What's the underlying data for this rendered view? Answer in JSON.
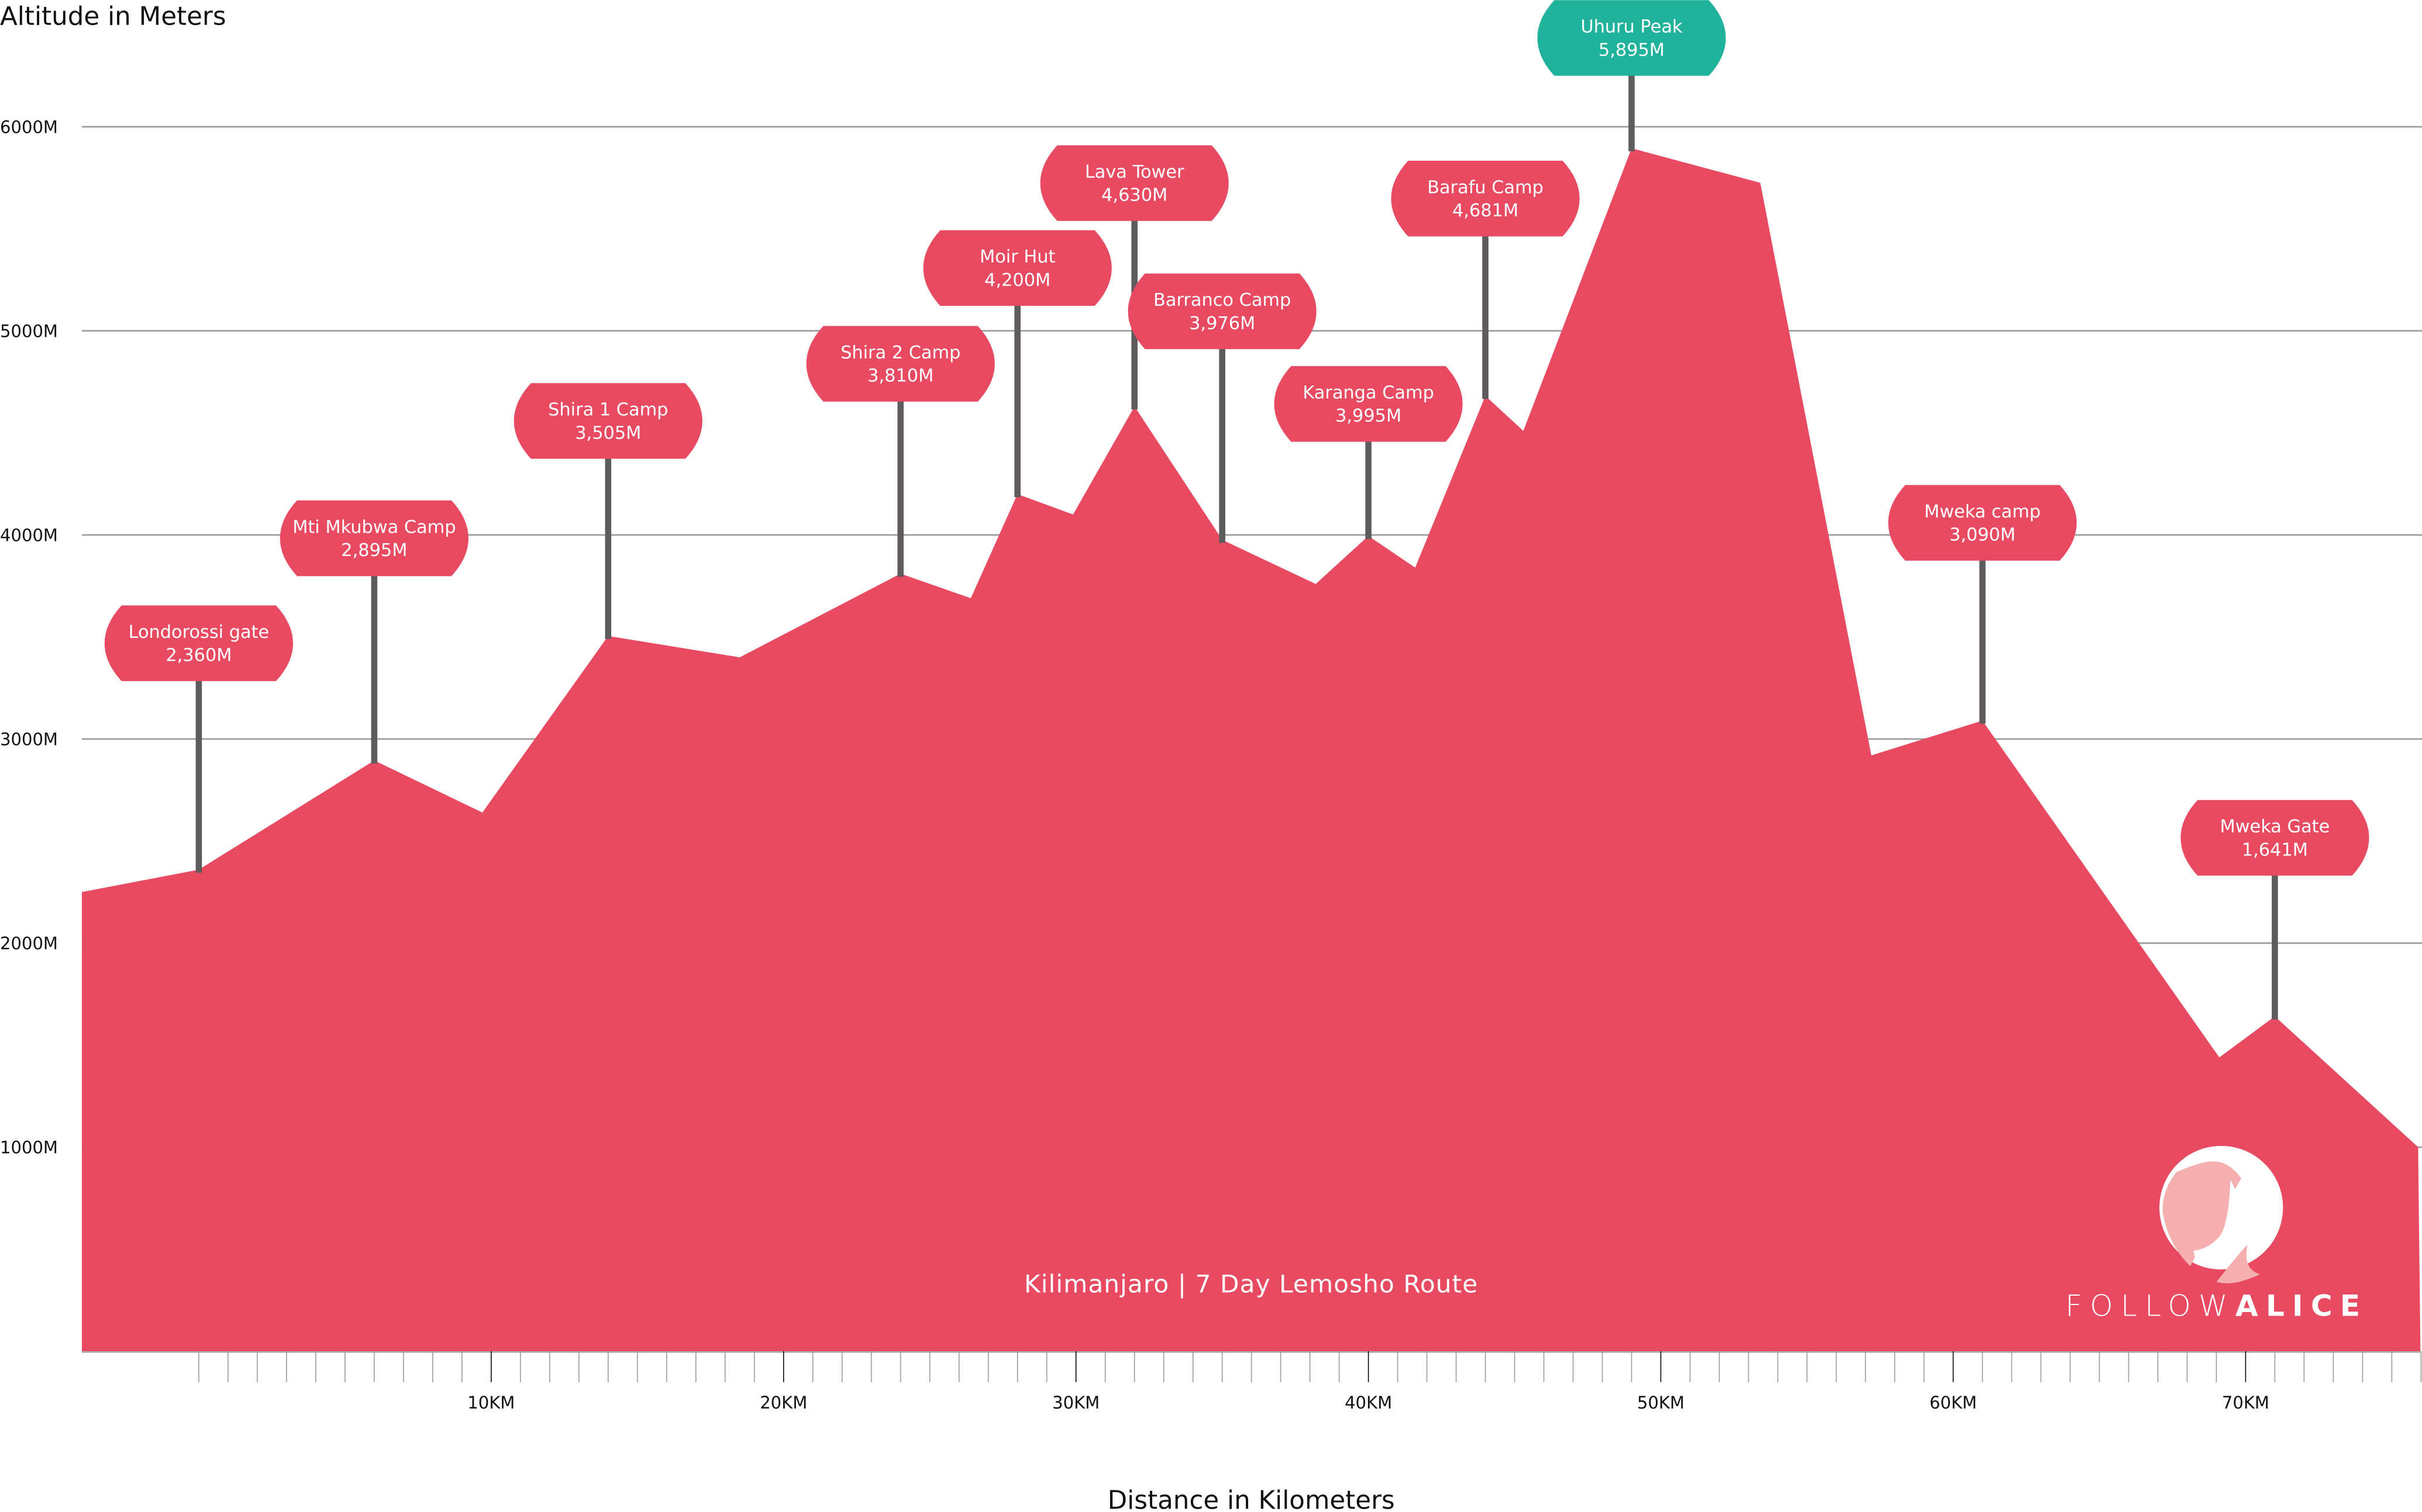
{
  "chart_data": {
    "type": "area",
    "title": "Kilimanjaro | 7 Day Lemosho Route",
    "xlabel": "Distance in Kilometers",
    "ylabel": "Altitude in Meters",
    "xlim": [
      -4,
      76
    ],
    "ylim": [
      0,
      6000
    ],
    "grid": true,
    "y_ticks": [
      {
        "value": 1000,
        "label": "1000M"
      },
      {
        "value": 2000,
        "label": "2000M"
      },
      {
        "value": 3000,
        "label": "3000M"
      },
      {
        "value": 4000,
        "label": "4000M"
      },
      {
        "value": 5000,
        "label": "5000M"
      },
      {
        "value": 6000,
        "label": "6000M"
      }
    ],
    "x_ticks": [
      {
        "value": 10,
        "label": "10KM"
      },
      {
        "value": 20,
        "label": "20KM"
      },
      {
        "value": 30,
        "label": "30KM"
      },
      {
        "value": 40,
        "label": "40KM"
      },
      {
        "value": 50,
        "label": "50KM"
      },
      {
        "value": 60,
        "label": "60KM"
      },
      {
        "value": 70,
        "label": "70KM"
      }
    ],
    "minor_tick_step_km": 1,
    "profile": {
      "x": [
        -4,
        0,
        6,
        9.7,
        14,
        18.5,
        24,
        26.4,
        28,
        29.9,
        32,
        35,
        38.2,
        40,
        41.6,
        44,
        45.3,
        49,
        53.4,
        57.2,
        61,
        69.1,
        71,
        75.9
      ],
      "y": [
        2250,
        2360,
        2895,
        2640,
        3505,
        3400,
        3810,
        3690,
        4200,
        4100,
        4630,
        3976,
        3760,
        3995,
        3840,
        4681,
        4510,
        5895,
        5725,
        2920,
        3090,
        1440,
        1641,
        1000
      ]
    },
    "waypoints": [
      {
        "name": "Londorossi gate",
        "altitude_label": "2,360M",
        "km": 0,
        "altitude": 2360
      },
      {
        "name": "Mti Mkubwa Camp",
        "altitude_label": "2,895M",
        "km": 6,
        "altitude": 2895
      },
      {
        "name": "Shira 1 Camp",
        "altitude_label": "3,505M",
        "km": 14,
        "altitude": 3505
      },
      {
        "name": "Shira 2 Camp",
        "altitude_label": "3,810M",
        "km": 24,
        "altitude": 3810
      },
      {
        "name": "Moir Hut",
        "altitude_label": "4,200M",
        "km": 28,
        "altitude": 4200
      },
      {
        "name": "Lava Tower",
        "altitude_label": "4,630M",
        "km": 32,
        "altitude": 4630
      },
      {
        "name": "Barranco Camp",
        "altitude_label": "3,976M",
        "km": 35,
        "altitude": 3976
      },
      {
        "name": "Karanga Camp",
        "altitude_label": "3,995M",
        "km": 40,
        "altitude": 3995
      },
      {
        "name": "Barafu Camp",
        "altitude_label": "4,681M",
        "km": 44,
        "altitude": 4681
      },
      {
        "name": "Uhuru Peak",
        "altitude_label": "5,895M",
        "km": 49,
        "altitude": 5895,
        "highlight": true
      },
      {
        "name": "Mweka camp",
        "altitude_label": "3,090M",
        "km": 61,
        "altitude": 3090
      },
      {
        "name": "Mweka Gate",
        "altitude_label": "1,641M",
        "km": 71,
        "altitude": 1641
      }
    ],
    "colors": {
      "area": "#E84A62",
      "highlight": "#20B29B",
      "pole": "#5E5B5C",
      "grid": "#9A9A9A",
      "logo_light": "#F5AFAF"
    }
  },
  "logo": {
    "text_light": "FOLLOW",
    "text_bold": "ALICE"
  }
}
